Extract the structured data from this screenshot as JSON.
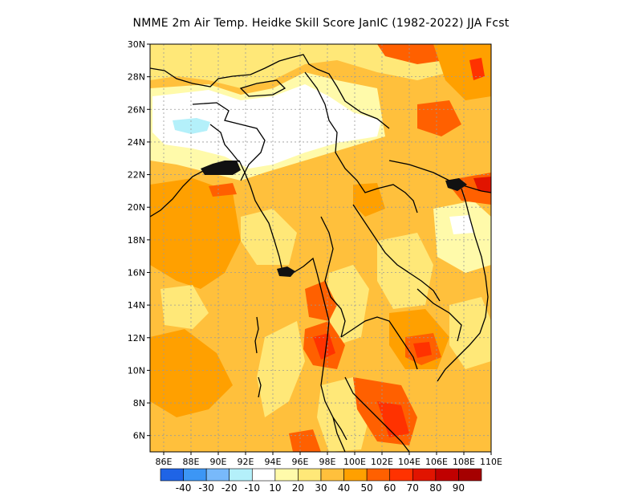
{
  "title": "NMME   2m Air Temp. Heidke Skill Score JanIC (1982-2022) JJA Fcst",
  "map": {
    "lon_range": [
      85,
      110
    ],
    "lat_range": [
      5,
      30
    ],
    "lat_ticks": [
      "30N",
      "28N",
      "26N",
      "24N",
      "22N",
      "20N",
      "18N",
      "16N",
      "14N",
      "12N",
      "10N",
      "8N",
      "6N"
    ],
    "lon_ticks": [
      "86E",
      "88E",
      "90E",
      "92E",
      "94E",
      "96E",
      "98E",
      "100E",
      "102E",
      "104E",
      "106E",
      "108E",
      "110E"
    ],
    "grid": true,
    "coastline_color": "#000000"
  },
  "colorbar": {
    "colors": [
      "#1f64e6",
      "#3c96f5",
      "#78b9fa",
      "#b4f0fa",
      "#ffffff",
      "#fffaaa",
      "#ffe878",
      "#ffc03c",
      "#ffa000",
      "#ff6000",
      "#ff3200",
      "#e11400",
      "#c00000",
      "#a50000"
    ],
    "labels": [
      "-40",
      "-30",
      "-20",
      "-10",
      "10",
      "20",
      "30",
      "40",
      "50",
      "60",
      "70",
      "80",
      "90"
    ]
  }
}
